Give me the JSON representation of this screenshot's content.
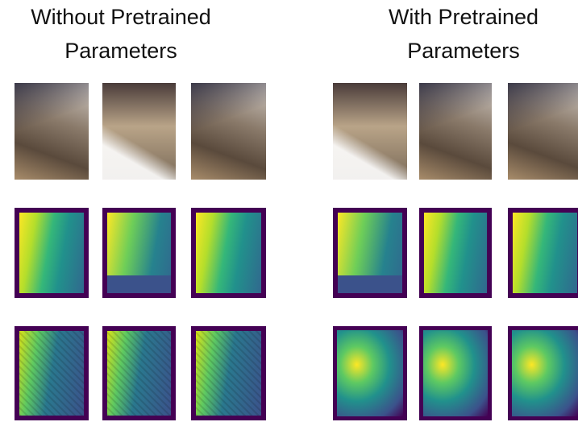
{
  "panels": [
    {
      "title_lines": [
        "Without Pretrained",
        "Parameters"
      ]
    },
    {
      "title_lines": [
        "With Pretrained",
        "Parameters"
      ]
    }
  ]
}
